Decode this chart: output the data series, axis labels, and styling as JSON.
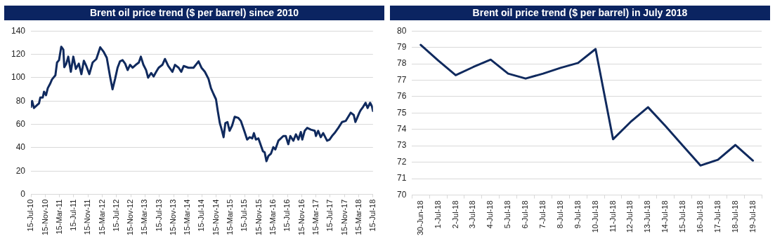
{
  "chart_data": [
    {
      "type": "line",
      "title": "Brent oil price trend ($ per barrel) since 2010",
      "grid": "y",
      "legend": false,
      "marker": "none",
      "xlim": [
        "2010-07-15",
        "2018-07-15"
      ],
      "ylim": [
        0,
        140
      ],
      "yticks": [
        0,
        20,
        40,
        60,
        80,
        100,
        120,
        140
      ],
      "xticks": [
        {
          "value": "2010-07-15",
          "label": "15-Jul-10"
        },
        {
          "value": "2010-11-15",
          "label": "15-Nov-10"
        },
        {
          "value": "2011-03-15",
          "label": "15-Mar-11"
        },
        {
          "value": "2011-07-15",
          "label": "15-Jul-11"
        },
        {
          "value": "2011-11-15",
          "label": "15-Nov-11"
        },
        {
          "value": "2012-03-15",
          "label": "15-Mar-12"
        },
        {
          "value": "2012-07-15",
          "label": "15-Jul-12"
        },
        {
          "value": "2012-11-15",
          "label": "15-Nov-12"
        },
        {
          "value": "2013-03-15",
          "label": "15-Mar-13"
        },
        {
          "value": "2013-07-15",
          "label": "15-Jul-13"
        },
        {
          "value": "2013-11-15",
          "label": "15-Nov-13"
        },
        {
          "value": "2014-03-15",
          "label": "15-Mar-14"
        },
        {
          "value": "2014-07-15",
          "label": "15-Jul-14"
        },
        {
          "value": "2014-11-15",
          "label": "15-Nov-14"
        },
        {
          "value": "2015-03-15",
          "label": "15-Mar-15"
        },
        {
          "value": "2015-07-15",
          "label": "15-Jul-15"
        },
        {
          "value": "2015-11-15",
          "label": "15-Nov-15"
        },
        {
          "value": "2016-03-15",
          "label": "15-Mar-16"
        },
        {
          "value": "2016-07-15",
          "label": "15-Jul-16"
        },
        {
          "value": "2016-11-15",
          "label": "15-Nov-16"
        },
        {
          "value": "2017-03-15",
          "label": "15-Mar-17"
        },
        {
          "value": "2017-07-15",
          "label": "15-Jul-17"
        },
        {
          "value": "2017-11-15",
          "label": "15-Nov-17"
        },
        {
          "value": "2018-03-15",
          "label": "15-Mar-18"
        },
        {
          "value": "2018-07-15",
          "label": "15-Jul-18"
        }
      ],
      "series": [
        {
          "color": "#102a5e",
          "x": [
            "2010-07-15",
            "2010-07-25",
            "2010-08-10",
            "2010-08-31",
            "2010-09-22",
            "2010-10-03",
            "2010-10-24",
            "2010-11-04",
            "2010-11-21",
            "2010-12-06",
            "2010-12-27",
            "2011-01-11",
            "2011-02-09",
            "2011-02-23",
            "2011-03-12",
            "2011-03-31",
            "2011-04-18",
            "2011-04-26",
            "2011-05-13",
            "2011-05-30",
            "2011-06-21",
            "2011-07-12",
            "2011-08-03",
            "2011-08-28",
            "2011-09-19",
            "2011-10-10",
            "2011-10-31",
            "2011-11-26",
            "2011-12-24",
            "2012-01-25",
            "2012-02-27",
            "2012-03-28",
            "2012-04-23",
            "2012-05-21",
            "2012-06-11",
            "2012-07-03",
            "2012-07-24",
            "2012-08-14",
            "2012-09-05",
            "2012-09-27",
            "2012-10-18",
            "2012-11-08",
            "2012-11-30",
            "2012-12-27",
            "2013-01-22",
            "2013-02-08",
            "2013-03-02",
            "2013-03-25",
            "2013-04-11",
            "2013-05-07",
            "2013-05-28",
            "2013-06-19",
            "2013-07-10",
            "2013-08-11",
            "2013-09-02",
            "2013-09-30",
            "2013-11-05",
            "2013-11-27",
            "2013-12-28",
            "2014-01-19",
            "2014-02-09",
            "2014-03-22",
            "2014-05-04",
            "2014-06-16",
            "2014-07-11",
            "2014-08-09",
            "2014-09-09",
            "2014-09-30",
            "2014-10-22",
            "2014-11-12",
            "2014-11-28",
            "2014-12-15",
            "2014-12-31",
            "2015-01-16",
            "2015-01-31",
            "2015-02-18",
            "2015-03-08",
            "2015-03-30",
            "2015-04-21",
            "2015-05-22",
            "2015-06-12",
            "2015-07-15",
            "2015-08-05",
            "2015-08-27",
            "2015-09-18",
            "2015-10-02",
            "2015-10-19",
            "2015-11-09",
            "2015-11-27",
            "2015-12-18",
            "2016-01-02",
            "2016-01-17",
            "2016-02-03",
            "2016-02-25",
            "2016-03-16",
            "2016-04-02",
            "2016-04-28",
            "2016-05-19",
            "2016-06-09",
            "2016-06-30",
            "2016-07-22",
            "2016-08-08",
            "2016-09-03",
            "2016-09-25",
            "2016-10-16",
            "2016-11-06",
            "2016-11-18",
            "2016-12-09",
            "2016-12-30",
            "2017-01-31",
            "2017-03-05",
            "2017-03-15",
            "2017-04-03",
            "2017-04-25",
            "2017-05-16",
            "2017-06-18",
            "2017-07-09",
            "2017-07-30",
            "2017-08-21",
            "2017-09-22",
            "2017-10-24",
            "2017-11-25",
            "2017-12-16",
            "2018-01-06",
            "2018-02-01",
            "2018-02-15",
            "2018-03-02",
            "2018-03-21",
            "2018-03-31",
            "2018-04-22",
            "2018-05-13",
            "2018-05-30",
            "2018-06-21",
            "2018-07-06",
            "2018-07-15"
          ],
          "values": [
            75,
            80,
            74,
            76,
            78,
            83,
            83,
            88,
            85,
            91,
            95,
            98.5,
            102,
            113,
            115,
            126.5,
            124,
            109,
            112,
            118,
            105,
            118,
            107.5,
            112,
            103,
            114.5,
            110,
            103,
            113,
            116,
            126,
            122,
            117,
            101,
            90,
            99,
            108.5,
            114,
            115,
            112,
            106.5,
            111,
            108.5,
            111,
            113,
            118,
            111,
            106.5,
            100,
            104,
            101,
            105,
            108.5,
            111,
            116,
            110,
            105,
            111,
            108.5,
            105,
            110,
            108.5,
            108.5,
            114,
            108.5,
            105,
            99,
            91,
            86,
            81.5,
            71,
            61,
            55.5,
            49,
            61,
            62,
            54.5,
            59,
            66.5,
            65.5,
            63,
            53.5,
            47,
            49,
            48,
            52.5,
            47,
            48,
            43,
            37,
            36,
            28.5,
            33,
            35,
            40.5,
            38.5,
            46,
            48,
            50,
            50,
            43,
            50,
            46,
            51.5,
            47,
            53.5,
            47,
            54.5,
            57,
            55.5,
            54.5,
            50,
            54.5,
            49,
            52.5,
            46,
            47,
            50,
            52.5,
            57,
            62,
            63,
            66.5,
            70,
            68,
            62,
            65.5,
            70,
            72,
            75,
            78.5,
            74,
            78.5,
            75.5,
            71.5
          ]
        }
      ]
    },
    {
      "type": "line",
      "title": "Brent oil price trend ($ per barrel) in July 2018",
      "grid": "y",
      "legend": false,
      "marker": "none",
      "ylim": [
        70,
        80
      ],
      "yticks": [
        70,
        71,
        72,
        73,
        74,
        75,
        76,
        77,
        78,
        79,
        80
      ],
      "categories": [
        "30-Jun-18",
        "1-Jul-18",
        "2-Jul-18",
        "3-Jul-18",
        "4-Jul-18",
        "5-Jul-18",
        "6-Jul-18",
        "7-Jul-18",
        "8-Jul-18",
        "9-Jul-18",
        "10-Jul-18",
        "11-Jul-18",
        "12-Jul-18",
        "13-Jul-18",
        "14-Jul-18",
        "15-Jul-18",
        "16-Jul-18",
        "17-Jul-18",
        "18-Jul-18",
        "19-Jul-18"
      ],
      "series": [
        {
          "color": "#102a5e",
          "values": [
            79.15,
            78.2,
            77.3,
            77.8,
            78.25,
            77.4,
            77.1,
            77.4,
            77.75,
            78.05,
            78.9,
            73.4,
            74.45,
            75.35,
            74.2,
            73.0,
            71.8,
            72.15,
            73.05,
            72.1
          ]
        }
      ]
    }
  ]
}
